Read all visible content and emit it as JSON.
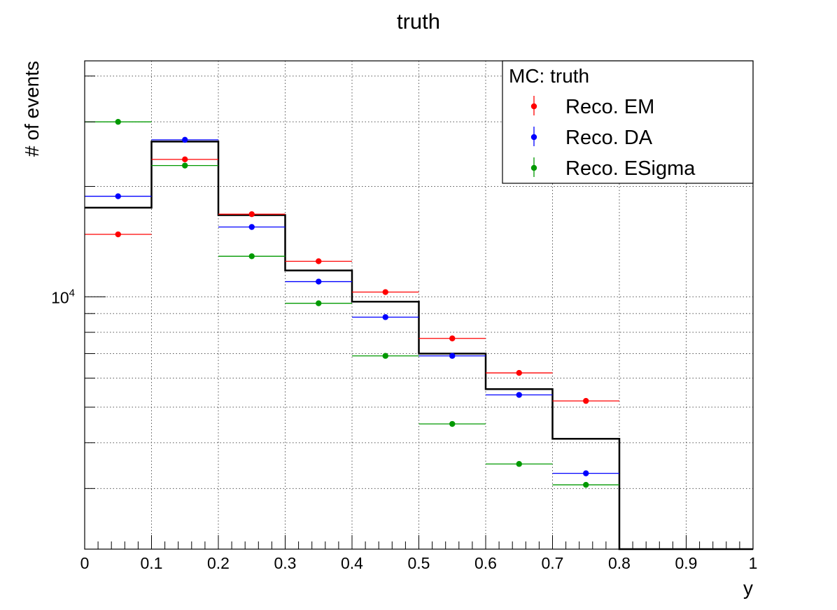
{
  "chart_data": {
    "type": "scatter",
    "title": "truth",
    "xlabel": "y",
    "ylabel": "# of events",
    "xlim": [
      0,
      1
    ],
    "ylim": [
      2050,
      44000
    ],
    "yscale": "log",
    "grid": true,
    "legend_position": "top-right",
    "legend_header": "MC: truth",
    "x_ticks": [
      0,
      0.1,
      0.2,
      0.3,
      0.4,
      0.5,
      0.6,
      0.7,
      0.8,
      0.9,
      1
    ],
    "x_tick_labels": [
      "0",
      "0.1",
      "0.2",
      "0.3",
      "0.4",
      "0.5",
      "0.6",
      "0.7",
      "0.8",
      "0.9",
      "1"
    ],
    "y_major_tick": 10000,
    "y_major_tick_label": "10",
    "y_major_tick_exponent": "4",
    "bin_edges": [
      0,
      0.1,
      0.2,
      0.3,
      0.4,
      0.5,
      0.6,
      0.7,
      0.8,
      0.9,
      1.0
    ],
    "histogram": {
      "name": "truth",
      "color": "#000000",
      "values": [
        17500,
        26500,
        16700,
        11800,
        9700,
        7000,
        5600,
        4100,
        0,
        0
      ]
    },
    "series": [
      {
        "name": "Reco. EM",
        "color": "#ff0000",
        "x": [
          0.05,
          0.15,
          0.25,
          0.35,
          0.45,
          0.55,
          0.65,
          0.75
        ],
        "values": [
          14800,
          23700,
          16800,
          12500,
          10300,
          7700,
          6200,
          5200
        ]
      },
      {
        "name": "Reco. DA",
        "color": "#0000ff",
        "x": [
          0.05,
          0.15,
          0.25,
          0.35,
          0.45,
          0.55,
          0.65,
          0.75
        ],
        "values": [
          18800,
          26800,
          15500,
          11000,
          8800,
          6900,
          5400,
          3300
        ]
      },
      {
        "name": "Reco. ESigma",
        "color": "#009900",
        "x": [
          0.05,
          0.15,
          0.25,
          0.35,
          0.45,
          0.55,
          0.65,
          0.75
        ],
        "values": [
          30000,
          22800,
          12900,
          9600,
          6900,
          4500,
          3500,
          3070
        ]
      }
    ]
  }
}
